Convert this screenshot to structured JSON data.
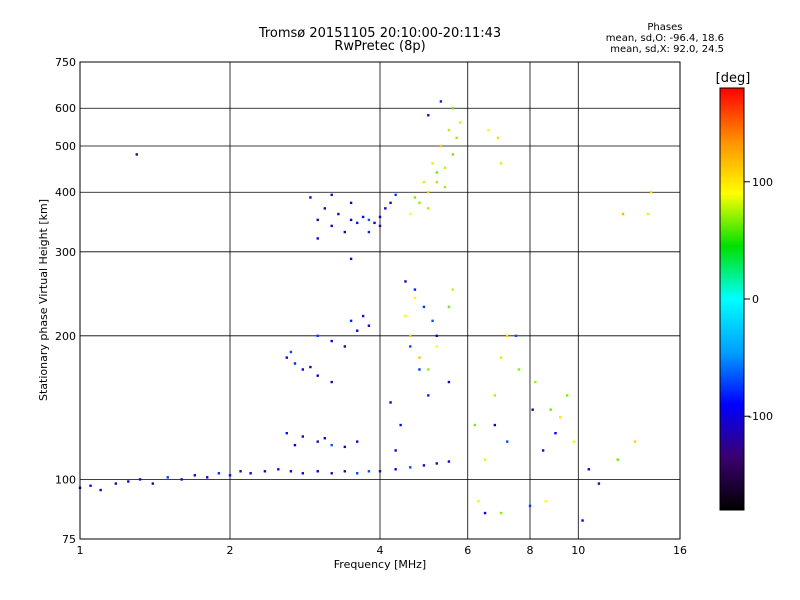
{
  "title": "Tromsø 20151105 20:10:00-20:11:43",
  "subtitle": "RwPretec (8p)",
  "phases_header": "Phases",
  "phases_line1": "mean, sd,O: -96.4, 18.6",
  "phases_line2": "mean, sd,X:  92.0, 24.5",
  "colorbar": {
    "label": "[deg]",
    "ticks": [
      "100",
      "0",
      "-100"
    ],
    "range": [
      -180,
      180
    ],
    "colors": [
      "#000000",
      "#3a0070",
      "#0000ff",
      "#00a0ff",
      "#00ffff",
      "#00e000",
      "#ffff00",
      "#ff9000",
      "#ff0000"
    ]
  },
  "chart_data": {
    "type": "scatter",
    "title": "Tromsø 20151105 20:10:00-20:11:43",
    "subtitle": "RwPretec (8p)",
    "xlabel": "Frequency [MHz]",
    "ylabel": "Stationary phase Virtual Height [km]",
    "x_scale": "log",
    "y_scale": "log",
    "xlim": [
      1,
      16
    ],
    "ylim": [
      75,
      750
    ],
    "x_ticks": [
      "1",
      "2",
      "4",
      "6",
      "8",
      "10",
      "16"
    ],
    "x_tick_values": [
      1,
      2,
      4,
      6,
      8,
      10,
      16
    ],
    "y_ticks": [
      "75",
      "100",
      "200",
      "300",
      "400",
      "500",
      "600",
      "750"
    ],
    "y_tick_values": [
      75,
      100,
      200,
      300,
      400,
      500,
      600,
      750
    ],
    "grid": true,
    "color_scale": "phase [deg]",
    "series": [
      {
        "name": "O",
        "points": [
          [
            1.0,
            96
          ],
          [
            1.05,
            97
          ],
          [
            1.1,
            95
          ],
          [
            1.18,
            98
          ],
          [
            1.25,
            99
          ],
          [
            1.32,
            100
          ],
          [
            1.4,
            98
          ],
          [
            1.5,
            101
          ],
          [
            1.6,
            100
          ],
          [
            1.7,
            102
          ],
          [
            1.8,
            101
          ],
          [
            1.9,
            103
          ],
          [
            2.0,
            102
          ],
          [
            2.1,
            104
          ],
          [
            2.2,
            103
          ],
          [
            2.35,
            104
          ],
          [
            2.5,
            105
          ],
          [
            2.65,
            104
          ],
          [
            2.8,
            103
          ],
          [
            3.0,
            104
          ],
          [
            3.2,
            103
          ],
          [
            3.4,
            104
          ],
          [
            3.6,
            103
          ],
          [
            3.8,
            104
          ],
          [
            4.0,
            104
          ],
          [
            4.3,
            105
          ],
          [
            4.6,
            106
          ],
          [
            4.9,
            107
          ],
          [
            5.2,
            108
          ],
          [
            5.5,
            109
          ],
          [
            2.6,
            125
          ],
          [
            2.8,
            123
          ],
          [
            3.0,
            120
          ],
          [
            3.2,
            118
          ],
          [
            3.4,
            117
          ],
          [
            3.6,
            120
          ],
          [
            2.7,
            118
          ],
          [
            3.1,
            122
          ],
          [
            2.6,
            180
          ],
          [
            2.7,
            175
          ],
          [
            2.8,
            170
          ],
          [
            3.0,
            165
          ],
          [
            3.2,
            160
          ],
          [
            2.65,
            185
          ],
          [
            2.9,
            172
          ],
          [
            3.0,
            200
          ],
          [
            3.2,
            195
          ],
          [
            3.4,
            190
          ],
          [
            3.6,
            205
          ],
          [
            3.8,
            210
          ],
          [
            3.5,
            215
          ],
          [
            3.7,
            220
          ],
          [
            3.0,
            350
          ],
          [
            3.1,
            370
          ],
          [
            3.2,
            340
          ],
          [
            3.3,
            360
          ],
          [
            3.4,
            330
          ],
          [
            3.5,
            350
          ],
          [
            3.6,
            345
          ],
          [
            3.7,
            355
          ],
          [
            3.8,
            350
          ],
          [
            3.9,
            345
          ],
          [
            4.0,
            355
          ],
          [
            4.1,
            370
          ],
          [
            4.2,
            380
          ],
          [
            4.3,
            395
          ],
          [
            2.9,
            390
          ],
          [
            3.0,
            320
          ],
          [
            3.2,
            395
          ],
          [
            3.5,
            380
          ],
          [
            3.8,
            330
          ],
          [
            4.0,
            340
          ],
          [
            4.5,
            260
          ],
          [
            4.7,
            250
          ],
          [
            4.9,
            230
          ],
          [
            5.1,
            215
          ],
          [
            4.6,
            190
          ],
          [
            4.8,
            170
          ],
          [
            5.0,
            150
          ],
          [
            4.4,
            130
          ],
          [
            4.2,
            145
          ],
          [
            5.2,
            200
          ],
          [
            5.5,
            160
          ],
          [
            4.3,
            115
          ],
          [
            1.3,
            480
          ],
          [
            3.5,
            290
          ],
          [
            5.0,
            580
          ],
          [
            5.3,
            620
          ],
          [
            6.8,
            130
          ],
          [
            7.2,
            120
          ],
          [
            8.1,
            140
          ],
          [
            8.5,
            115
          ],
          [
            9.0,
            125
          ],
          [
            10.5,
            105
          ],
          [
            11.0,
            98
          ],
          [
            7.5,
            200
          ],
          [
            6.5,
            85
          ],
          [
            8.0,
            88
          ],
          [
            10.2,
            82
          ]
        ]
      },
      {
        "name": "X",
        "points": [
          [
            4.6,
            360
          ],
          [
            4.8,
            380
          ],
          [
            5.0,
            400
          ],
          [
            5.2,
            420
          ],
          [
            5.4,
            450
          ],
          [
            5.6,
            480
          ],
          [
            5.7,
            520
          ],
          [
            5.8,
            560
          ],
          [
            4.9,
            420
          ],
          [
            5.1,
            460
          ],
          [
            5.3,
            500
          ],
          [
            5.5,
            540
          ],
          [
            5.0,
            370
          ],
          [
            5.4,
            410
          ],
          [
            5.6,
            600
          ],
          [
            4.7,
            390
          ],
          [
            5.2,
            440
          ],
          [
            4.5,
            220
          ],
          [
            4.6,
            200
          ],
          [
            4.8,
            180
          ],
          [
            5.0,
            170
          ],
          [
            5.2,
            190
          ],
          [
            5.5,
            230
          ],
          [
            5.6,
            250
          ],
          [
            4.7,
            240
          ],
          [
            6.2,
            130
          ],
          [
            6.5,
            110
          ],
          [
            6.8,
            150
          ],
          [
            7.0,
            180
          ],
          [
            7.2,
            200
          ],
          [
            7.6,
            170
          ],
          [
            8.2,
            160
          ],
          [
            8.8,
            140
          ],
          [
            9.2,
            135
          ],
          [
            9.5,
            150
          ],
          [
            6.3,
            90
          ],
          [
            7.0,
            85
          ],
          [
            8.6,
            90
          ],
          [
            9.8,
            120
          ],
          [
            12.0,
            110
          ],
          [
            13.0,
            120
          ],
          [
            6.6,
            540
          ],
          [
            6.9,
            520
          ],
          [
            7.0,
            460
          ],
          [
            12.3,
            360
          ],
          [
            14.0,
            400
          ],
          [
            13.8,
            360
          ]
        ]
      }
    ]
  }
}
